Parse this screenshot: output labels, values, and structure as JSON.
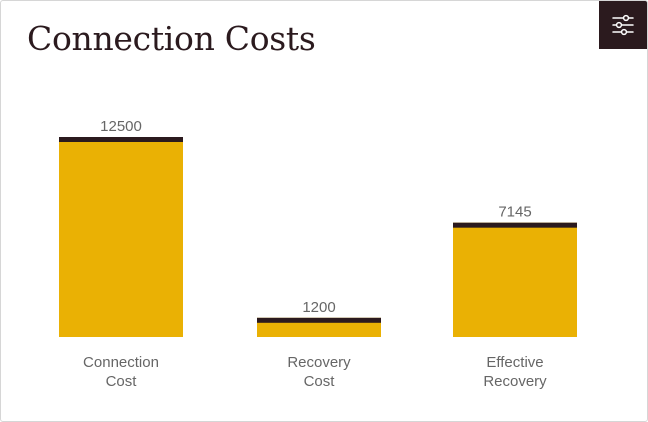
{
  "header": {
    "title": "Connection Costs",
    "filter_icon": "sliders-icon"
  },
  "colors": {
    "bar_fill": "#EAB104",
    "bar_cap": "#2B1A1E",
    "text_dark": "#2B1A1E",
    "label_gray": "#666666"
  },
  "chart_data": {
    "type": "bar",
    "title": "Connection Costs",
    "categories": [
      "Connection Cost",
      "Recovery Cost",
      "Effective Recovery"
    ],
    "category_lines": [
      [
        "Connection",
        "Cost"
      ],
      [
        "Recovery",
        "Cost"
      ],
      [
        "Effective",
        "Recovery"
      ]
    ],
    "values": [
      12500,
      1200,
      7145
    ],
    "value_labels": [
      "12500",
      "1200",
      "7145"
    ],
    "xlabel": "",
    "ylabel": "",
    "ylim": [
      0,
      12500
    ],
    "grid": false,
    "legend": "none"
  }
}
